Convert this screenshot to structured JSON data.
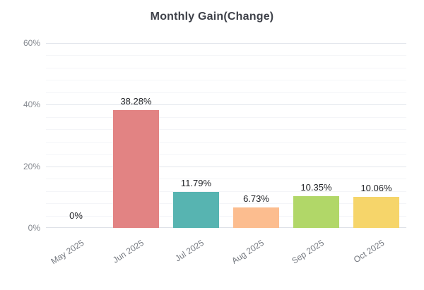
{
  "chart_data": {
    "type": "bar",
    "title": "Monthly Gain(Change)",
    "categories": [
      "May 2025",
      "Jun 2025",
      "Jul 2025",
      "Aug 2025",
      "Sep 2025",
      "Oct 2025"
    ],
    "values": [
      0,
      38.28,
      11.79,
      6.73,
      10.35,
      10.06
    ],
    "value_labels": [
      "0%",
      "38.28%",
      "11.79%",
      "6.73%",
      "10.35%",
      "10.06%"
    ],
    "bar_colors": [
      null,
      "#e28383",
      "#57b4b1",
      "#fcbd8f",
      "#b1d768",
      "#f6d56a"
    ],
    "ylabel": "",
    "xlabel": "",
    "ylim": [
      0,
      60
    ],
    "ytick_values": [
      0,
      20,
      40,
      60
    ],
    "ytick_labels": [
      "0%",
      "20%",
      "40%",
      "60%"
    ],
    "minor_grid_step": 4,
    "grid": "on",
    "legend": "none",
    "xlabel_rotation_deg": -33
  }
}
